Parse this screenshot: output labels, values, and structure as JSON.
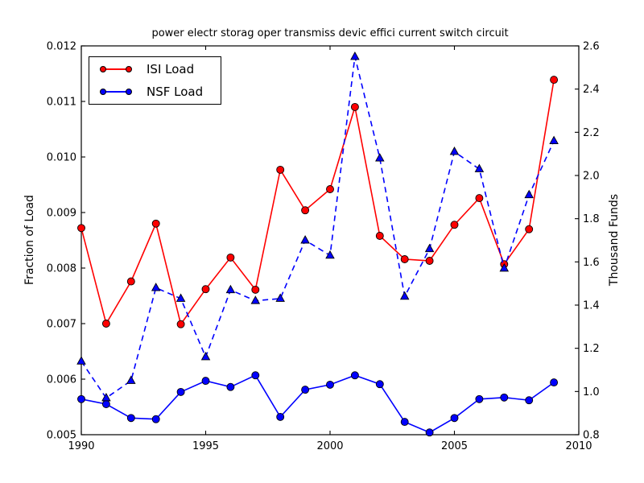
{
  "chart_data": {
    "type": "line",
    "title": "power electr storag oper transmiss devic effici current switch circuit",
    "grid": false,
    "x_axis": {
      "min": 1990,
      "max": 2010,
      "ticks": [
        1990,
        1995,
        2000,
        2005,
        2010
      ],
      "tick_labels": [
        "1990",
        "1995",
        "2000",
        "2005",
        "2010"
      ]
    },
    "left_axis": {
      "label": "Fraction of Load",
      "min": 0.005,
      "max": 0.012,
      "ticks": [
        0.005,
        0.006,
        0.007,
        0.008,
        0.009,
        0.01,
        0.011,
        0.012
      ],
      "tick_labels": [
        "0.005",
        "0.006",
        "0.007",
        "0.008",
        "0.009",
        "0.010",
        "0.011",
        "0.012"
      ]
    },
    "right_axis": {
      "label": "Thousand Funds",
      "min": 0.8,
      "max": 2.6,
      "ticks": [
        0.8,
        1.0,
        1.2,
        1.4,
        1.6,
        1.8,
        2.0,
        2.2,
        2.4,
        2.6
      ],
      "tick_labels": [
        "0.8",
        "1.0",
        "1.2",
        "1.4",
        "1.6",
        "1.8",
        "2.0",
        "2.2",
        "2.4",
        "2.6"
      ]
    },
    "x": [
      1990,
      1991,
      1992,
      1993,
      1994,
      1995,
      1996,
      1997,
      1998,
      1999,
      2000,
      2001,
      2002,
      2003,
      2004,
      2005,
      2006,
      2007,
      2008,
      2009
    ],
    "series": [
      {
        "name": "ISI Load",
        "axis": "left",
        "color": "#ff0000",
        "line_style": "solid",
        "marker": "circle",
        "in_legend": true,
        "values": [
          0.00872,
          0.007,
          0.00776,
          0.0088,
          0.00699,
          0.00762,
          0.00819,
          0.00761,
          0.00977,
          0.00904,
          0.00942,
          0.0109,
          0.00858,
          0.00816,
          0.00813,
          0.00878,
          0.00926,
          0.00807,
          0.0087,
          0.01139
        ]
      },
      {
        "name": "NSF Load",
        "axis": "left",
        "color": "#0000ff",
        "line_style": "solid",
        "marker": "circle",
        "in_legend": true,
        "values": [
          0.00564,
          0.00555,
          0.0053,
          0.00528,
          0.00577,
          0.00597,
          0.00586,
          0.00607,
          0.00532,
          0.00581,
          0.0059,
          0.00607,
          0.00591,
          0.00523,
          0.00504,
          0.0053,
          0.00564,
          0.00567,
          0.00562,
          0.00594
        ]
      },
      {
        "name": "",
        "axis": "right",
        "color": "#0000ff",
        "line_style": "dashed",
        "marker": "triangle",
        "in_legend": false,
        "values": [
          1.14,
          0.97,
          1.05,
          1.48,
          1.43,
          1.16,
          1.47,
          1.42,
          1.43,
          1.7,
          1.63,
          2.55,
          2.08,
          1.44,
          1.66,
          2.11,
          2.03,
          1.57,
          1.91,
          2.16
        ]
      }
    ],
    "legend": {
      "position": "upper-left",
      "entries": [
        "ISI Load",
        "NSF Load"
      ]
    }
  }
}
